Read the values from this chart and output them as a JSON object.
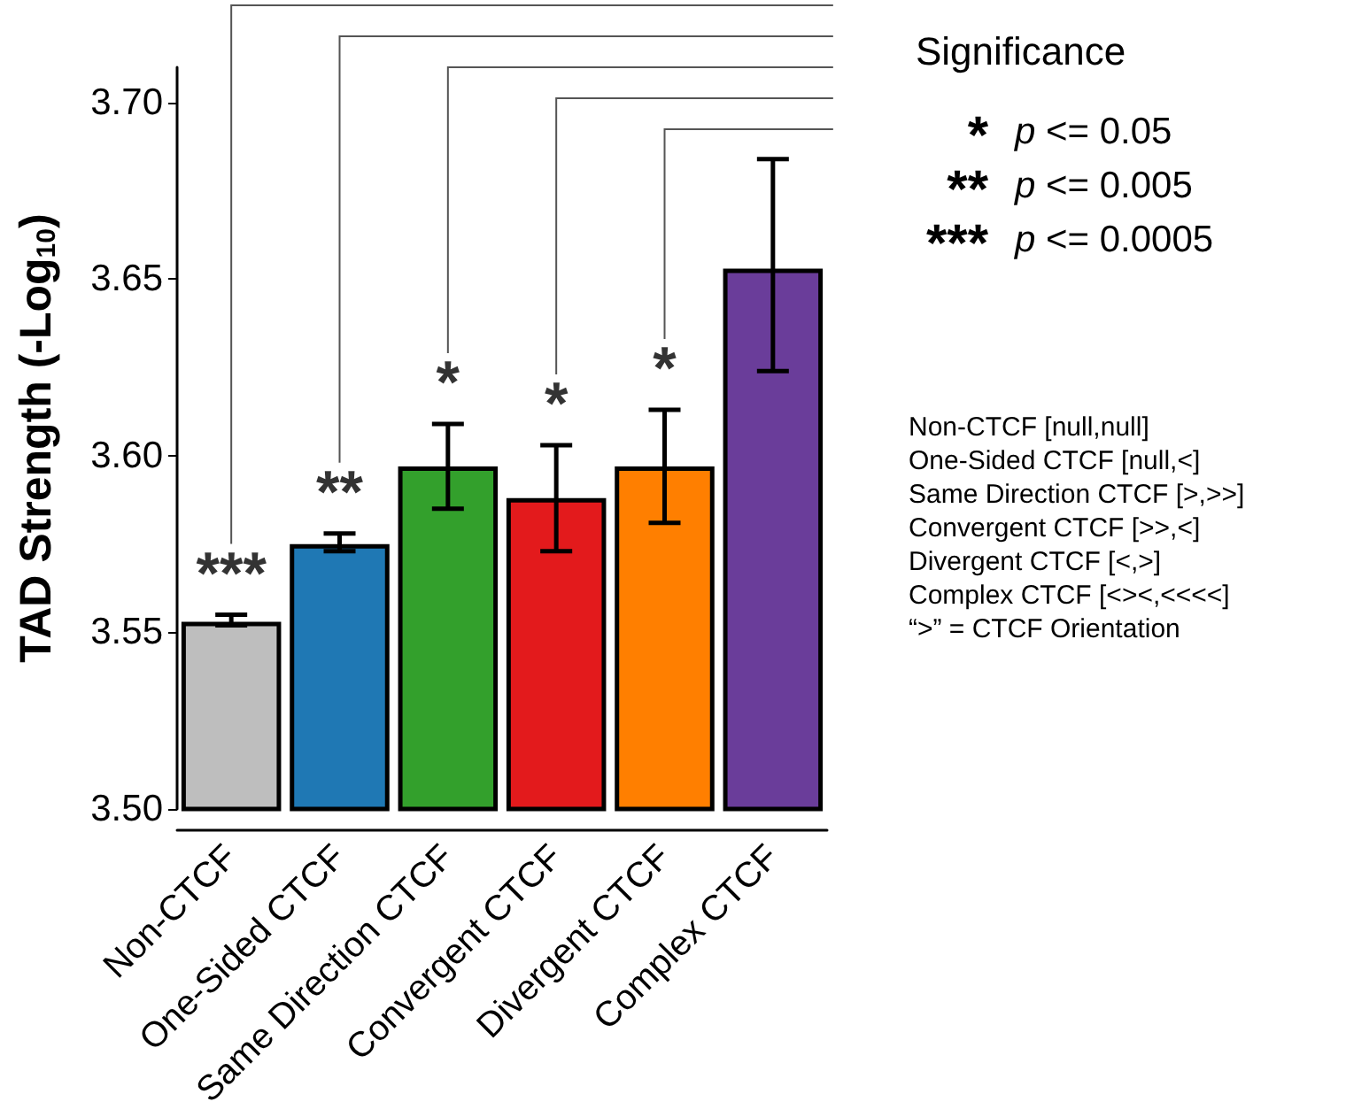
{
  "chart_data": {
    "type": "bar",
    "categories": [
      "Non-CTCF",
      "One-Sided CTCF",
      "Same Direction CTCF",
      "Convergent CTCF",
      "Divergent CTCF",
      "Complex CTCF"
    ],
    "values": [
      3.553,
      3.575,
      3.597,
      3.588,
      3.597,
      3.653
    ],
    "colors": [
      "#bebebe",
      "#1f78b4",
      "#33a02c",
      "#e31a1c",
      "#ff7f00",
      "#6a3d9a"
    ],
    "errors": [
      [
        3.552,
        3.555
      ],
      [
        3.573,
        3.578
      ],
      [
        3.585,
        3.609
      ],
      [
        3.573,
        3.603
      ],
      [
        3.581,
        3.613
      ],
      [
        3.624,
        3.684
      ]
    ],
    "ylabel": "TAD Strength (-Log$_{10}$)",
    "ylim": [
      3.5,
      3.71
    ],
    "yticks": [
      {
        "value": 3.5,
        "label": "3.50"
      },
      {
        "value": 3.55,
        "label": "3.55"
      },
      {
        "value": 3.6,
        "label": "3.60"
      },
      {
        "value": 3.65,
        "label": "3.65"
      },
      {
        "value": 3.7,
        "label": "3.70"
      }
    ],
    "grid": false,
    "annotations": [
      "***",
      "**",
      "*",
      "*",
      "*",
      "Significance",
      "*",
      "p <= 0.05",
      "**",
      "p <= 0.005",
      "***",
      "p <= 0.0005",
      "Non-CTCF [null,null]",
      "One-Sided CTCF [null,<]",
      "Same Direction CTCF [>,>>]",
      "Convergent CTCF [>>,<]",
      "Divergent CTCF [<,>]",
      "Complex CTCF [<><,<<<<]",
      "“>” = CTCF Orientation"
    ]
  }
}
